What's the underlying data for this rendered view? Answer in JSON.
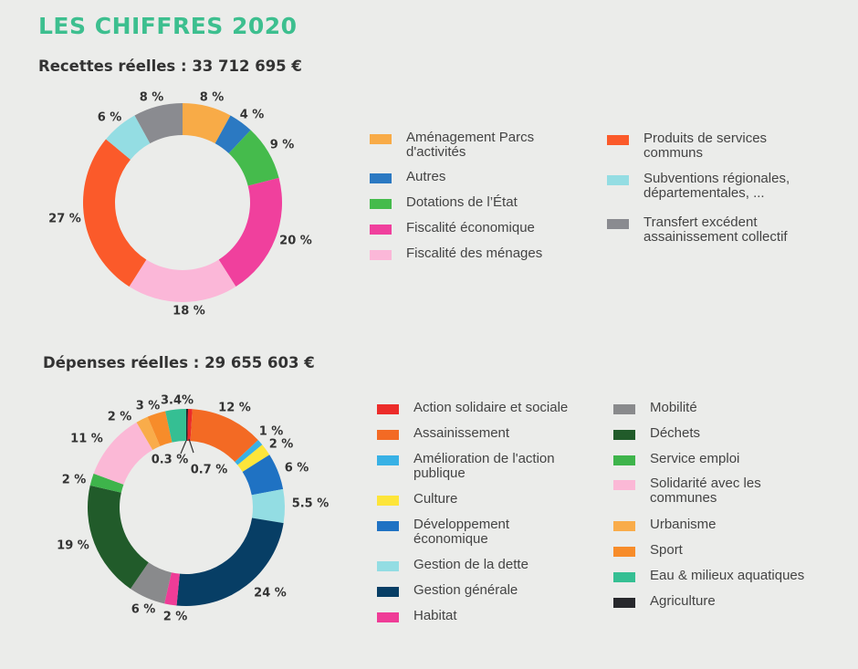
{
  "title": "LES CHIFFRES 2020",
  "chart_data": [
    {
      "type": "donut",
      "title": "Recettes réelles : 33 712 695 €",
      "series": [
        {
          "label": "Aménagement Parcs d'activités",
          "value": 8,
          "display": "8 %",
          "color": "#f8ab47"
        },
        {
          "label": "Autres",
          "value": 4,
          "display": "4 %",
          "color": "#2b79c2"
        },
        {
          "label": "Dotations de l’État",
          "value": 9,
          "display": "9 %",
          "color": "#45bb4c"
        },
        {
          "label": "Fiscalité économique",
          "value": 20,
          "display": "20 %",
          "color": "#f0409d"
        },
        {
          "label": "Fiscalité des ménages",
          "value": 18,
          "display": "18 %",
          "color": "#fbb7d8"
        },
        {
          "label": "Produits de services communs",
          "value": 27,
          "display": "27 %",
          "color": "#fb5a2a"
        },
        {
          "label": "Subventions régionales, départementales, ...",
          "value": 6,
          "display": "6 %",
          "color": "#94dde3"
        },
        {
          "label": "Transfert excédent assainissement collectif",
          "value": 8,
          "display": "8 %",
          "color": "#8a8b90"
        }
      ]
    },
    {
      "type": "donut",
      "title": "Dépenses réelles : 29 655 603 €",
      "series": [
        {
          "label": "Agriculture",
          "value": 0.3,
          "display": "0.3 %",
          "color": "#27282c"
        },
        {
          "label": "Action solidaire et sociale",
          "value": 0.7,
          "display": "0.7 %",
          "color": "#ec2c2a"
        },
        {
          "label": "Assainissement",
          "value": 12,
          "display": "12 %",
          "color": "#f36a24"
        },
        {
          "label": "Amélioration de l'action publique",
          "value": 1,
          "display": "1 %",
          "color": "#38b1e5"
        },
        {
          "label": "Culture",
          "value": 2,
          "display": "2 %",
          "color": "#fde53a"
        },
        {
          "label": "Développement économique",
          "value": 6,
          "display": "6 %",
          "color": "#1f72c3"
        },
        {
          "label": "Gestion de la dette",
          "value": 5.5,
          "display": "5.5 %",
          "color": "#93dde3"
        },
        {
          "label": "Gestion générale",
          "value": 24,
          "display": "24 %",
          "color": "#073e65"
        },
        {
          "label": "Habitat",
          "value": 2,
          "display": "2 %",
          "color": "#ef3c97"
        },
        {
          "label": "Mobilité",
          "value": 6,
          "display": "6 %",
          "color": "#898a8c"
        },
        {
          "label": "Déchets",
          "value": 19,
          "display": "19 %",
          "color": "#215b2a"
        },
        {
          "label": "Service emploi",
          "value": 2,
          "display": "2 %",
          "color": "#3eb44b"
        },
        {
          "label": "Solidarité avec les communes",
          "value": 11,
          "display": "11 %",
          "color": "#fbb8d6"
        },
        {
          "label": "Urbanisme",
          "value": 2,
          "display": "2 %",
          "color": "#f9ac4a"
        },
        {
          "label": "Sport",
          "value": 3,
          "display": "3 %",
          "color": "#f78c2a"
        },
        {
          "label": "Eau & milieux aquatiques",
          "value": 3.4,
          "display": "3.4%",
          "color": "#35bf93"
        }
      ]
    }
  ],
  "legends": {
    "recettes": [
      {
        "label": "Aménagement Parcs d'activités",
        "color": "#f8ab47"
      },
      {
        "label": "Autres",
        "color": "#2b79c2"
      },
      {
        "label": "Dotations de l’État",
        "color": "#45bb4c"
      },
      {
        "label": "Fiscalité économique",
        "color": "#f0409d"
      },
      {
        "label": "Fiscalité des ménages",
        "color": "#fbb7d8"
      },
      {
        "label": "Produits de services communs",
        "color": "#fb5a2a"
      },
      {
        "label": "Subventions régionales, départementales, ...",
        "color": "#94dde3"
      },
      {
        "label": "Transfert excédent assainissement collectif",
        "color": "#8a8b90"
      }
    ],
    "depenses": [
      {
        "label": "Action solidaire et sociale",
        "color": "#ec2c2a"
      },
      {
        "label": "Assainissement",
        "color": "#f36a24"
      },
      {
        "label": "Amélioration de l'action publique",
        "color": "#38b1e5"
      },
      {
        "label": "Culture",
        "color": "#fde53a"
      },
      {
        "label": "Développement économique",
        "color": "#1f72c3"
      },
      {
        "label": "Gestion de la dette",
        "color": "#93dde3"
      },
      {
        "label": "Gestion générale",
        "color": "#073e65"
      },
      {
        "label": "Habitat",
        "color": "#ef3c97"
      },
      {
        "label": "Mobilité",
        "color": "#898a8c"
      },
      {
        "label": "Déchets",
        "color": "#215b2a"
      },
      {
        "label": "Service emploi",
        "color": "#3eb44b"
      },
      {
        "label": "Solidarité avec les communes",
        "color": "#fbb8d6"
      },
      {
        "label": "Urbanisme",
        "color": "#f9ac4a"
      },
      {
        "label": "Sport",
        "color": "#f78c2a"
      },
      {
        "label": "Eau & milieux aquatiques",
        "color": "#35bf93"
      },
      {
        "label": "Agriculture",
        "color": "#27282c"
      }
    ]
  }
}
